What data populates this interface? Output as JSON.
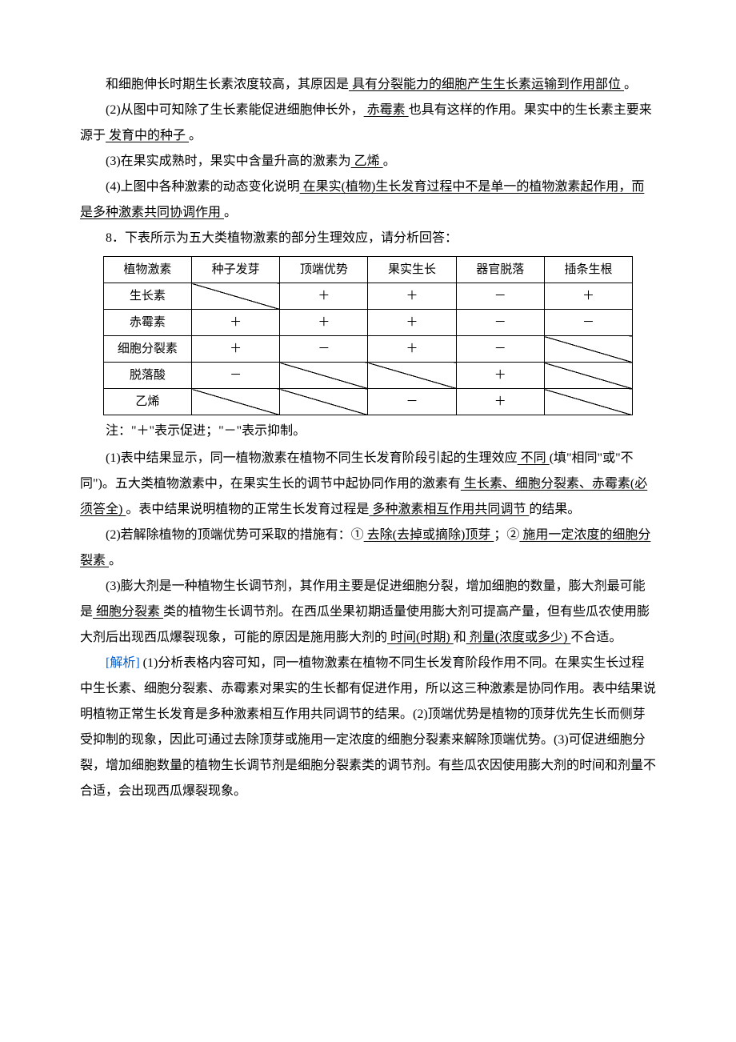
{
  "para1": {
    "pre": "和细胞伸长时期生长素浓度较高，其原因是",
    "blank": "  具有分裂能力的细胞产生生长素运输到作用部位    ",
    "post": "。"
  },
  "para2": {
    "a": "(2)从图中可知除了生长素能促进细胞伸长外，",
    "b": "  赤霉素    ",
    "c": "也具有这样的作用。果实中的生长素主要来源于",
    "d": "  发育中的种子    ",
    "e": "。"
  },
  "para3": {
    "a": "(3)在果实成熟时，果实中含量升高的激素为",
    "b": "  乙烯    ",
    "c": "。"
  },
  "para4": {
    "a": "(4)上图中各种激素的动态变化说明",
    "b": "  在果实(植物)生长发育过程中不是单一的植物激素起作用，而是多种激素共同协调作用    ",
    "c": "。"
  },
  "q8": "8．下表所示为五大类植物激素的部分生理效应，请分析回答：",
  "table": {
    "head": [
      "植物激素",
      "种子发芽",
      "顶端优势",
      "果实生长",
      "器官脱落",
      "插条生根"
    ],
    "rows": [
      {
        "label": "生长素",
        "cells": [
          "diag",
          "＋",
          "＋",
          "－",
          "＋"
        ]
      },
      {
        "label": "赤霉素",
        "cells": [
          "＋",
          "＋",
          "＋",
          "－",
          "－"
        ]
      },
      {
        "label": "细胞分裂素",
        "cells": [
          "＋",
          "－",
          "＋",
          "－",
          "diag"
        ]
      },
      {
        "label": "脱落酸",
        "cells": [
          "－",
          "diag",
          "diag",
          "＋",
          "diag"
        ]
      },
      {
        "label": "乙烯",
        "cells": [
          "diag",
          "diag",
          "－",
          "＋",
          "diag"
        ]
      }
    ]
  },
  "tnote": "注：\"＋\"表示促进；\"－\"表示抑制。",
  "a1": {
    "a": "(1)表中结果显示，同一植物激素在植物不同生长发育阶段引起的生理效应",
    "b": "  不同    ",
    "c": "(填\"相同\"或\"不同\")。五大类植物激素中，在果实生长的调节中起协同作用的激素有",
    "d": "  生长素、细胞分裂素、赤霉素(必须答全)    ",
    "e": "。表中结果说明植物的正常生长发育过程是",
    "f": "  多种激素相互作用共同调节  ",
    "g": "的结果。"
  },
  "a2": {
    "a": "(2)若解除植物的顶端优势可采取的措施有：①",
    "b": "  去除(去掉或摘除)顶芽    ",
    "c": "；②",
    "d": "  施用一定浓度的细胞分裂素    ",
    "e": "。"
  },
  "a3": {
    "a": "(3)膨大剂是一种植物生长调节剂，其作用主要是促进细胞分裂，增加细胞的数量，膨大剂最可能是",
    "b": "  细胞分裂素    ",
    "c": "类的植物生长调节剂。在西瓜坐果初期适量使用膨大剂可提高产量，但有些瓜农使用膨大剂后出现西瓜爆裂现象，可能的原因是施用膨大剂的",
    "d": "  时间(时期)    ",
    "e": "和",
    "f": "  剂量(浓度或多少)    ",
    "g": "不合适。"
  },
  "ex": {
    "label": "[解析]",
    "text": "  (1)分析表格内容可知，同一植物激素在植物不同生长发育阶段作用不同。在果实生长过程中生长素、细胞分裂素、赤霉素对果实的生长都有促进作用，所以这三种激素是协同作用。表中结果说明植物正常生长发育是多种激素相互作用共同调节的结果。(2)顶端优势是植物的顶芽优先生长而侧芽受抑制的现象，因此可通过去除顶芽或施用一定浓度的细胞分裂素来解除顶端优势。(3)可促进细胞分裂，增加细胞数量的植物生长调节剂是细胞分裂素类的调节剂。有些瓜农因使用膨大剂的时间和剂量不合适，会出现西瓜爆裂现象。"
  }
}
